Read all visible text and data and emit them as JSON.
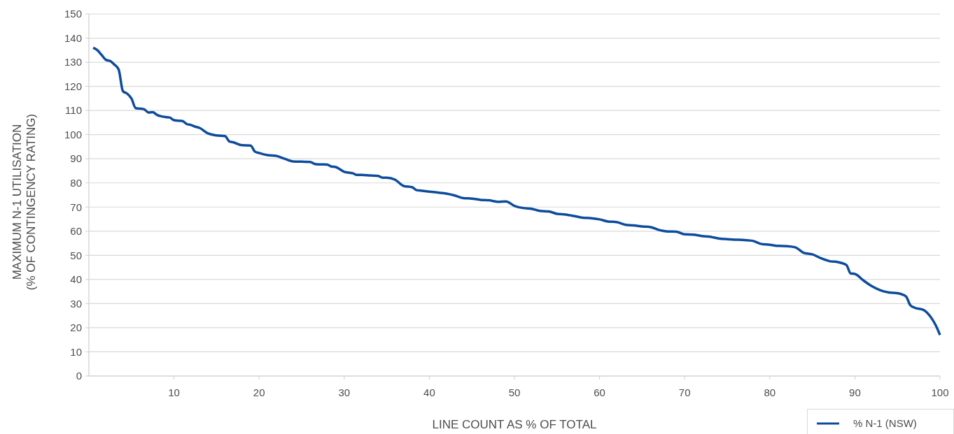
{
  "chart_data": {
    "type": "line",
    "xlabel": "LINE COUNT AS % OF TOTAL",
    "ylabel": "MAXIMUM N-1 UTILISATION\n(% OF CONTINGENCY RATING)",
    "xlim": [
      0,
      100
    ],
    "xticks": [
      10,
      20,
      30,
      40,
      50,
      60,
      70,
      80,
      90,
      100
    ],
    "ylim": [
      0,
      150
    ],
    "yticks": [
      0,
      10,
      20,
      30,
      40,
      50,
      60,
      70,
      80,
      90,
      100,
      110,
      120,
      130,
      140,
      150
    ],
    "grid": "y",
    "legend": "bottom right",
    "line_style": "solid",
    "marker": "none",
    "series": [
      {
        "name": "% N-1 (NSW)",
        "color": "#0d4c9c",
        "x": [
          0.5,
          1,
          1.5,
          2,
          2.5,
          3,
          3.5,
          4,
          4.5,
          5,
          5.5,
          6,
          6.5,
          7,
          7.5,
          8,
          8.5,
          9,
          9.5,
          10,
          10.5,
          11,
          11.5,
          12,
          12.5,
          13,
          14,
          15,
          16,
          16.5,
          17,
          18,
          19,
          19.5,
          20,
          21,
          22,
          23,
          24,
          25,
          26,
          26.5,
          27,
          28,
          28.5,
          29,
          30,
          31,
          31.5,
          32,
          33,
          34,
          34.5,
          35,
          36,
          37,
          38,
          38.5,
          39,
          40,
          41,
          42,
          43,
          44,
          45,
          46,
          47,
          48,
          49,
          50,
          51,
          52,
          53,
          54,
          55,
          56,
          57,
          58,
          59,
          60,
          61,
          62,
          63,
          64,
          65,
          66,
          67,
          68,
          69,
          70,
          71,
          72,
          73,
          74,
          75,
          76,
          77,
          78,
          79,
          80,
          81,
          82,
          83,
          84,
          85,
          86,
          87,
          88,
          89,
          89.5,
          90,
          91,
          92,
          93,
          94,
          95,
          96,
          96.5,
          97,
          98,
          99,
          99.5,
          100
        ],
        "values": [
          136,
          135,
          133,
          131,
          130.5,
          129,
          127,
          118,
          117,
          115,
          111,
          110.8,
          110.5,
          109.2,
          109.3,
          108.2,
          107.6,
          107.3,
          107.1,
          106,
          105.8,
          105.6,
          104.4,
          104,
          103.3,
          102.8,
          100.5,
          99.7,
          99.4,
          97.2,
          96.8,
          95.6,
          95.5,
          93,
          92.4,
          91.5,
          91.2,
          90,
          88.9,
          88.8,
          88.7,
          87.9,
          87.7,
          87.6,
          86.8,
          86.6,
          84.6,
          84,
          83.3,
          83.3,
          83.1,
          82.9,
          82.2,
          82.2,
          81.3,
          78.7,
          78.2,
          77,
          76.8,
          76.4,
          76,
          75.6,
          74.8,
          73.7,
          73.5,
          73,
          72.8,
          72.2,
          72.3,
          70.5,
          69.6,
          69.3,
          68.4,
          68.2,
          67.2,
          66.9,
          66.3,
          65.6,
          65.4,
          64.9,
          64,
          63.8,
          62.7,
          62.4,
          62,
          61.7,
          60.5,
          59.9,
          59.8,
          58.7,
          58.6,
          58,
          57.7,
          57,
          56.7,
          56.5,
          56.3,
          56,
          54.7,
          54.4,
          53.9,
          53.8,
          53.3,
          51,
          50.4,
          48.8,
          47.6,
          47.2,
          46,
          42.5,
          42.3,
          39.6,
          37.2,
          35.5,
          34.6,
          34.3,
          33,
          29.4,
          28.3,
          27.5,
          24,
          21,
          17
        ]
      }
    ]
  }
}
